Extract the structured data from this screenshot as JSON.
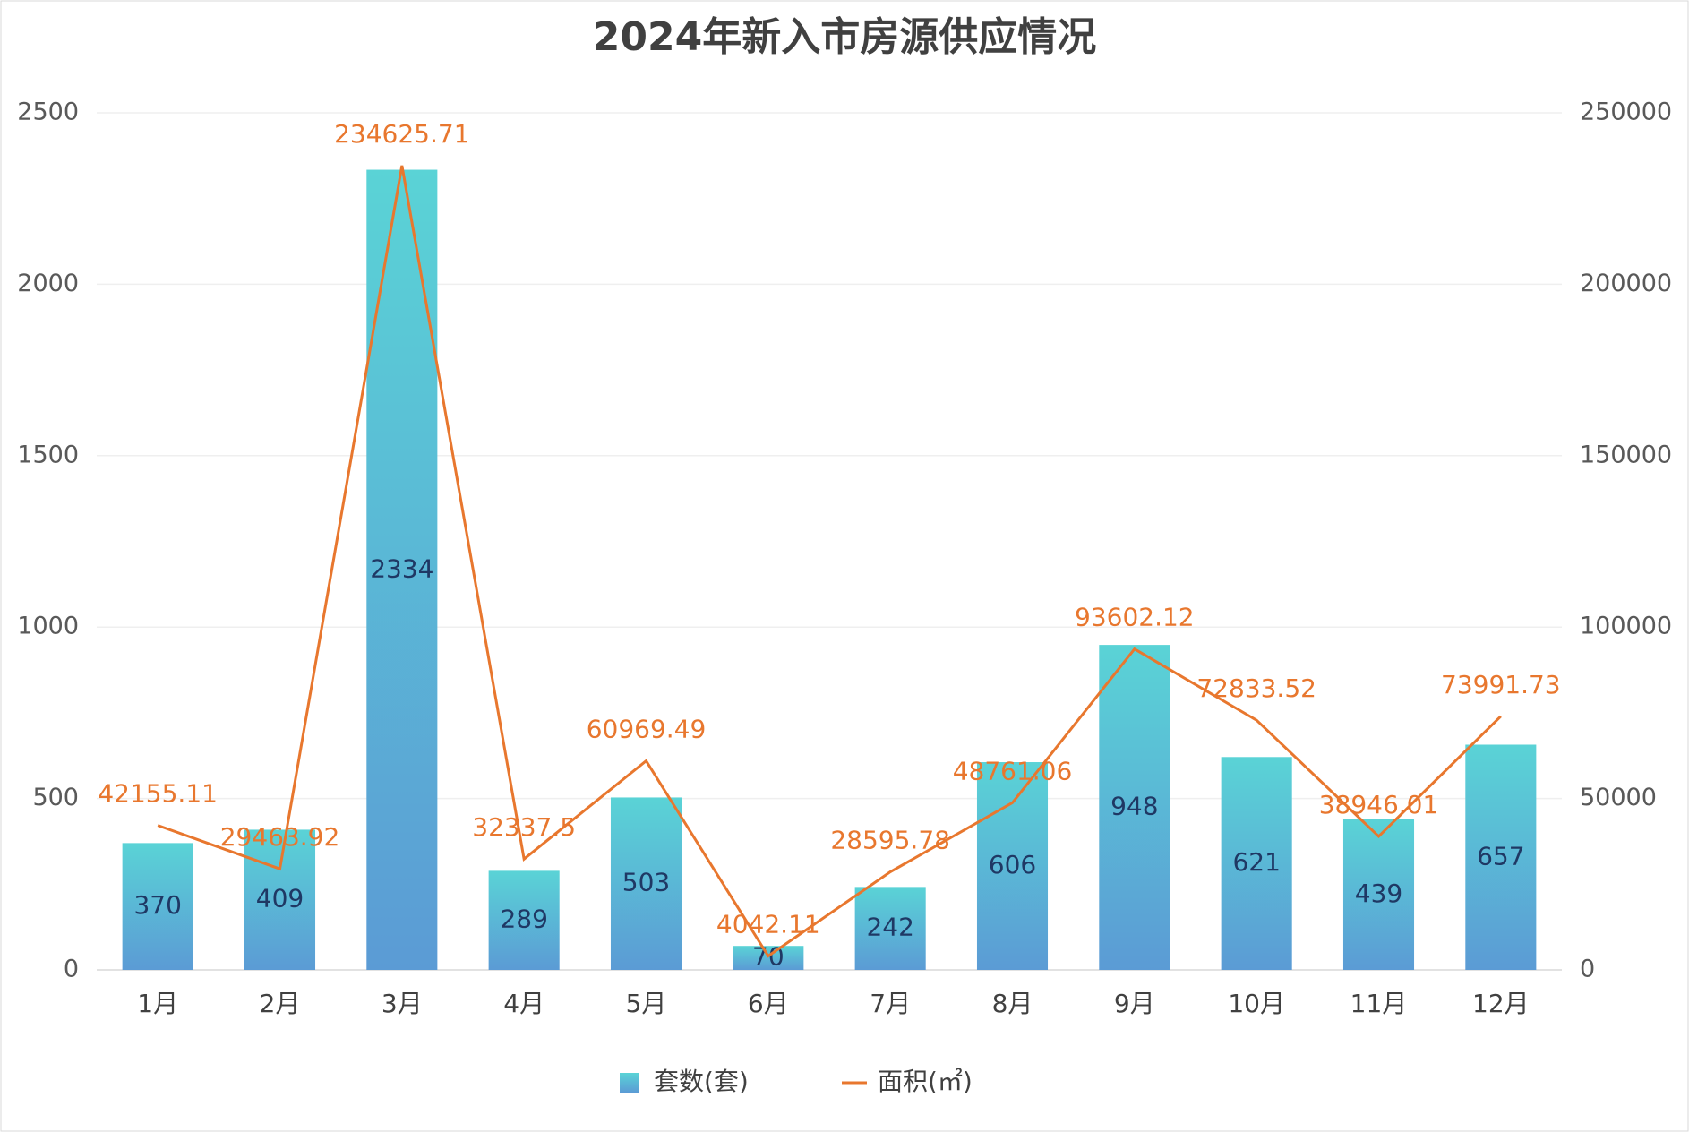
{
  "chart_data": {
    "type": "bar",
    "title": "2024年新入市房源供应情况",
    "categories": [
      "1月",
      "2月",
      "3月",
      "4月",
      "5月",
      "6月",
      "7月",
      "8月",
      "9月",
      "10月",
      "11月",
      "12月"
    ],
    "series": [
      {
        "name": "套数(套)",
        "type": "bar",
        "color": "#5ad3d6",
        "values": [
          370,
          409,
          2334,
          289,
          503,
          70,
          242,
          606,
          948,
          621,
          439,
          657
        ]
      },
      {
        "name": "面积(㎡)",
        "type": "line",
        "axis": "y2",
        "color": "#e8772e",
        "values": [
          42155.11,
          29463.92,
          234625.71,
          32337.5,
          60969.49,
          4042.11,
          28595.78,
          48761.06,
          93602.12,
          72833.52,
          38946.01,
          73991.73
        ]
      }
    ],
    "ylim": [
      0,
      2500
    ],
    "yticks": [
      0,
      500,
      1000,
      1500,
      2000,
      2500
    ],
    "y2lim": [
      0,
      250000
    ],
    "y2ticks": [
      0,
      50000,
      100000,
      150000,
      200000,
      250000
    ],
    "grid": true,
    "legend": "bottom"
  }
}
